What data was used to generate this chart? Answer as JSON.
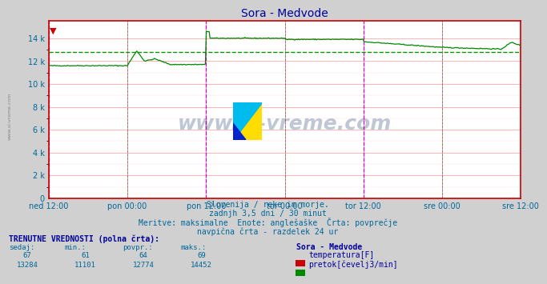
{
  "title": "Sora - Medvode",
  "background_color": "#d0d0d0",
  "plot_bg_color": "#ffffff",
  "grid_color_major": "#ff9999",
  "grid_color_minor": "#ffeeee",
  "xlabel_ticks": [
    "ned 12:00",
    "pon 00:00",
    "pon 12:00",
    "tor 00:00",
    "tor 12:00",
    "sre 00:00",
    "sre 12:00"
  ],
  "yticks": [
    0,
    2000,
    4000,
    6000,
    8000,
    10000,
    12000,
    14000
  ],
  "ytick_labels": [
    "0",
    "2 k",
    "4 k",
    "6 k",
    "8 k",
    "10 k",
    "12 k",
    "14 k"
  ],
  "ylim": [
    0,
    15500
  ],
  "flow_avg": 12774,
  "flow_color": "#008800",
  "flow_avg_color": "#009900",
  "temp_color": "#cc0000",
  "vline_color_magenta": "#dd00dd",
  "subtitle_lines": [
    "Slovenija / reke in morje.",
    "zadnjh 3,5 dni / 30 minut",
    "Meritve: maksimalne  Enote: anglešaške  Črta: povprečje",
    "navpična črta - razdelek 24 ur"
  ],
  "info_header": "TRENUTNE VREDNOSTI (polna črta):",
  "info_cols": [
    "sedaj:",
    "min.:",
    "povpr.:",
    "maks.:"
  ],
  "info_vals_temp": [
    "67",
    "61",
    "64",
    "69"
  ],
  "info_vals_flow": [
    "13284",
    "11101",
    "12774",
    "14452"
  ],
  "info_label": "Sora - Medvode",
  "legend_temp": "temperatura[F]",
  "legend_flow": "pretok[čevelj3/min]",
  "watermark": "www.si-vreme.com"
}
